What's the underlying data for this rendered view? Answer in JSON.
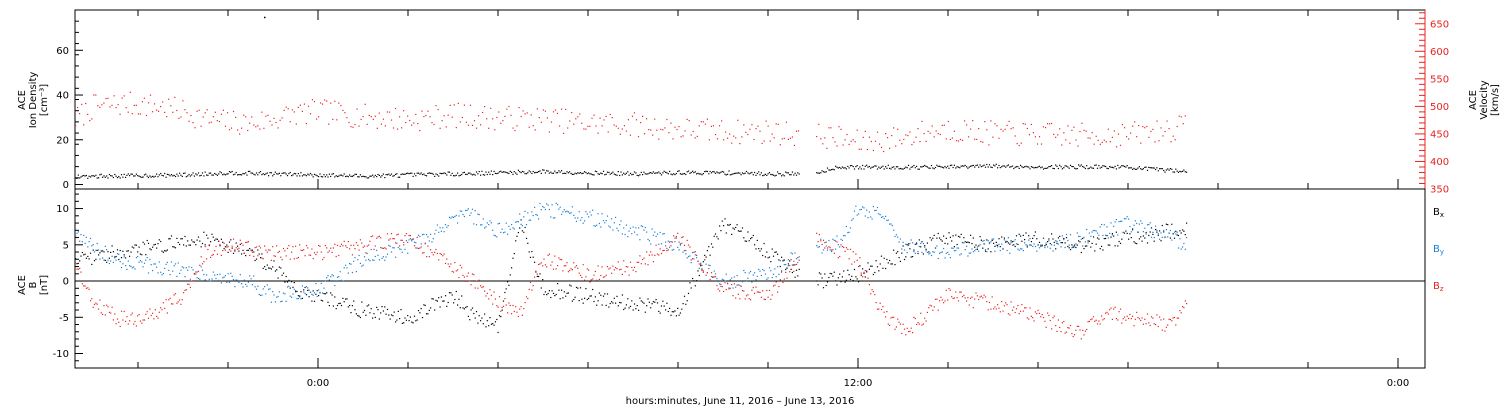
{
  "chart_data": [
    {
      "type": "scatter",
      "panel": "top",
      "x_ticks": [
        "0:00",
        "12:00",
        "0:00"
      ],
      "x_tick_hours": [
        0,
        12,
        24
      ],
      "xlim_hours": [
        -5.4,
        24.6
      ],
      "left_axis": {
        "label_lines": [
          "ACE",
          "Ion Density",
          "[cm⁻³]"
        ],
        "ylim": [
          -2,
          78
        ],
        "ticks": [
          0,
          20,
          40,
          60
        ]
      },
      "right_axis": {
        "label_lines": [
          "ACE",
          "Velocity",
          "[km/s]"
        ],
        "ylim": [
          350,
          675
        ],
        "ticks": [
          350,
          400,
          450,
          500,
          550,
          600,
          650
        ],
        "color": "#e8231f"
      },
      "series": [
        {
          "axis": "left",
          "color": "#000000",
          "points": [
            [
              -5.4,
              3.8
            ],
            [
              -4,
              4.2
            ],
            [
              -3,
              4.5
            ],
            [
              -2,
              5.5
            ],
            [
              -1,
              5
            ],
            [
              0,
              4.5
            ],
            [
              1,
              4
            ],
            [
              2,
              4.5
            ],
            [
              3,
              5
            ],
            [
              4,
              5.5
            ],
            [
              5,
              6
            ],
            [
              6,
              5.5
            ],
            [
              7,
              5
            ],
            [
              8,
              5.5
            ],
            [
              9,
              5.5
            ],
            [
              10,
              5
            ],
            [
              11,
              5
            ],
            [
              11.5,
              8
            ],
            [
              12,
              8
            ],
            [
              13,
              8
            ],
            [
              14,
              8
            ],
            [
              15,
              8.5
            ],
            [
              16,
              8
            ],
            [
              17,
              8.2
            ],
            [
              18,
              8
            ],
            [
              18.5,
              7
            ],
            [
              19,
              6.5
            ],
            [
              19.3,
              6.5
            ]
          ],
          "outliers": [
            [
              -1.2,
              75
            ]
          ]
        },
        {
          "axis": "right",
          "color": "#e8231f",
          "points": [
            [
              -5.4,
              478
            ],
            [
              -5,
              500
            ],
            [
              -4.5,
              505
            ],
            [
              -4,
              505
            ],
            [
              -3.5,
              500
            ],
            [
              -3,
              492
            ],
            [
              -2.5,
              478
            ],
            [
              -2,
              472
            ],
            [
              -1.5,
              470
            ],
            [
              -1,
              478
            ],
            [
              -0.5,
              488
            ],
            [
              0,
              492
            ],
            [
              1,
              483
            ],
            [
              2,
              477
            ],
            [
              3,
              485
            ],
            [
              4,
              480
            ],
            [
              5,
              478
            ],
            [
              6,
              470
            ],
            [
              7,
              468
            ],
            [
              8,
              460
            ],
            [
              9,
              455
            ],
            [
              10,
              455
            ],
            [
              11,
              448
            ],
            [
              11.5,
              445
            ],
            [
              12,
              435
            ],
            [
              13,
              445
            ],
            [
              13.5,
              455
            ],
            [
              14,
              460
            ],
            [
              15,
              452
            ],
            [
              16,
              450
            ],
            [
              17,
              448
            ],
            [
              18,
              450
            ],
            [
              19,
              460
            ],
            [
              19.3,
              465
            ]
          ]
        }
      ]
    },
    {
      "type": "scatter",
      "panel": "bottom",
      "x_ticks": [
        "0:00",
        "12:00",
        "0:00"
      ],
      "x_tick_hours": [
        0,
        12,
        24
      ],
      "xlim_hours": [
        -5.4,
        24.6
      ],
      "xlabel": "hours:minutes, June 11, 2016 – June 13, 2016",
      "left_axis": {
        "label_lines": [
          "ACE",
          "B",
          "[nT]"
        ],
        "ylim": [
          -12,
          12.7
        ],
        "ticks": [
          -10,
          -5,
          0,
          5,
          10
        ]
      },
      "legend": [
        {
          "label": "B",
          "sub": "x",
          "color": "#000000"
        },
        {
          "label": "B",
          "sub": "y",
          "color": "#1a7fd4"
        },
        {
          "label": "B",
          "sub": "z",
          "color": "#e8231f"
        }
      ],
      "series": [
        {
          "name": "Bx",
          "color": "#000000",
          "points": [
            [
              -5.4,
              3
            ],
            [
              -4.5,
              4
            ],
            [
              -3.5,
              5
            ],
            [
              -2.5,
              6
            ],
            [
              -1.5,
              4
            ],
            [
              -1,
              2
            ],
            [
              -0.5,
              -1
            ],
            [
              0,
              -2
            ],
            [
              1,
              -4
            ],
            [
              2,
              -5
            ],
            [
              3,
              -2
            ],
            [
              3.5,
              -5
            ],
            [
              4,
              -6
            ],
            [
              4.5,
              8
            ],
            [
              5,
              -1
            ],
            [
              6,
              -2
            ],
            [
              7,
              -3
            ],
            [
              8,
              -4
            ],
            [
              9,
              8
            ],
            [
              10,
              4
            ],
            [
              11,
              0
            ],
            [
              12,
              1
            ],
            [
              13,
              4
            ],
            [
              14,
              6
            ],
            [
              15,
              5
            ],
            [
              16,
              6
            ],
            [
              17,
              5
            ],
            [
              18,
              6
            ],
            [
              19,
              7
            ],
            [
              19.3,
              7
            ]
          ]
        },
        {
          "name": "By",
          "color": "#1a7fd4",
          "points": [
            [
              -5.4,
              6
            ],
            [
              -4.5,
              3
            ],
            [
              -3.5,
              2
            ],
            [
              -2.5,
              1
            ],
            [
              -1.5,
              0
            ],
            [
              -1,
              -2
            ],
            [
              0,
              -1
            ],
            [
              1,
              3
            ],
            [
              2,
              5
            ],
            [
              2.5,
              6
            ],
            [
              3,
              9
            ],
            [
              3.5,
              9
            ],
            [
              4,
              7
            ],
            [
              5,
              10
            ],
            [
              6,
              9
            ],
            [
              7,
              7
            ],
            [
              8,
              5
            ],
            [
              9,
              0
            ],
            [
              10,
              1
            ],
            [
              11,
              5
            ],
            [
              11.5,
              5
            ],
            [
              12,
              10
            ],
            [
              12.5,
              9
            ],
            [
              13,
              5
            ],
            [
              14,
              4
            ],
            [
              15,
              5
            ],
            [
              16,
              5
            ],
            [
              17,
              6
            ],
            [
              18,
              8
            ],
            [
              19,
              6
            ],
            [
              19.3,
              5
            ]
          ]
        },
        {
          "name": "Bz",
          "color": "#e8231f",
          "points": [
            [
              -5.4,
              2
            ],
            [
              -5,
              -3
            ],
            [
              -4.5,
              -5
            ],
            [
              -4,
              -5.5
            ],
            [
              -3.5,
              -4
            ],
            [
              -3,
              -2
            ],
            [
              -2.5,
              4
            ],
            [
              -2,
              5
            ],
            [
              -1,
              4
            ],
            [
              0,
              4
            ],
            [
              1,
              5
            ],
            [
              2,
              6
            ],
            [
              2.5,
              4
            ],
            [
              3,
              2
            ],
            [
              3.5,
              0
            ],
            [
              4,
              -3
            ],
            [
              4.5,
              -4
            ],
            [
              5,
              3
            ],
            [
              6,
              1
            ],
            [
              7,
              2
            ],
            [
              8,
              6
            ],
            [
              9,
              -1
            ],
            [
              10,
              -2
            ],
            [
              11,
              6
            ],
            [
              12,
              3
            ],
            [
              12.5,
              -4
            ],
            [
              13,
              -7
            ],
            [
              14,
              -2
            ],
            [
              15,
              -3
            ],
            [
              16,
              -5
            ],
            [
              17,
              -7
            ],
            [
              17.5,
              -4
            ],
            [
              18,
              -5
            ],
            [
              19,
              -6
            ],
            [
              19.3,
              -3
            ]
          ]
        }
      ]
    }
  ]
}
